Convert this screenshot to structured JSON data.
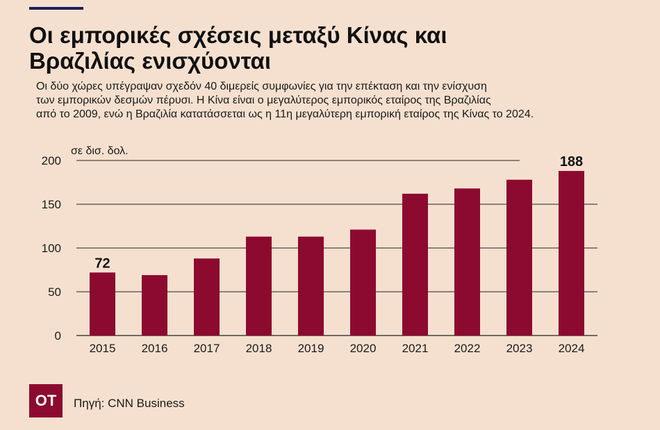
{
  "header": {
    "title": "Οι εμπορικές σχέσεις μεταξύ Κίνας και Βραζιλίας ενισχύονται",
    "subtitle_lines": [
      "Οι δύο χώρες υπέγραψαν σχεδόν 40 διμερείς συμφωνίες για την επέκταση και την ενίσχυση",
      "των εμπορικών δεσμών πέρυσι. Η Κίνα είναι ο μεγαλύτερος εμπορικός εταίρος της Βραζιλίας",
      "από το 2009, ενώ η Βραζιλία κατατάσσεται ως η 11η μεγαλύτερη εμπορική εταίρος της Κίνας το 2024."
    ]
  },
  "chart_data": {
    "type": "bar",
    "title": "Οι εμπορικές σχέσεις μεταξύ Κίνας και Βραζιλίας ενισχύονται",
    "unit_label": "σε δισ. δολ.",
    "xlabel": "",
    "ylabel": "σε δισ. δολ.",
    "categories": [
      "2015",
      "2016",
      "2017",
      "2018",
      "2019",
      "2020",
      "2021",
      "2022",
      "2023",
      "2024"
    ],
    "values": [
      72,
      69,
      88,
      113,
      113,
      121,
      162,
      168,
      178,
      188
    ],
    "data_labels": [
      {
        "index": 0,
        "text": "72"
      },
      {
        "index": 9,
        "text": "188"
      }
    ],
    "y_ticks": [
      0,
      50,
      100,
      150,
      200
    ],
    "ylim": [
      0,
      200
    ],
    "grid": true,
    "bar_color": "#8c0a2f"
  },
  "footer": {
    "logo_text": "ΟΤ",
    "source": "Πηγή: CNN Business"
  },
  "colors": {
    "background": "#f5e0cf",
    "accent": "#1d1e5a",
    "bar": "#8c0a2f"
  }
}
